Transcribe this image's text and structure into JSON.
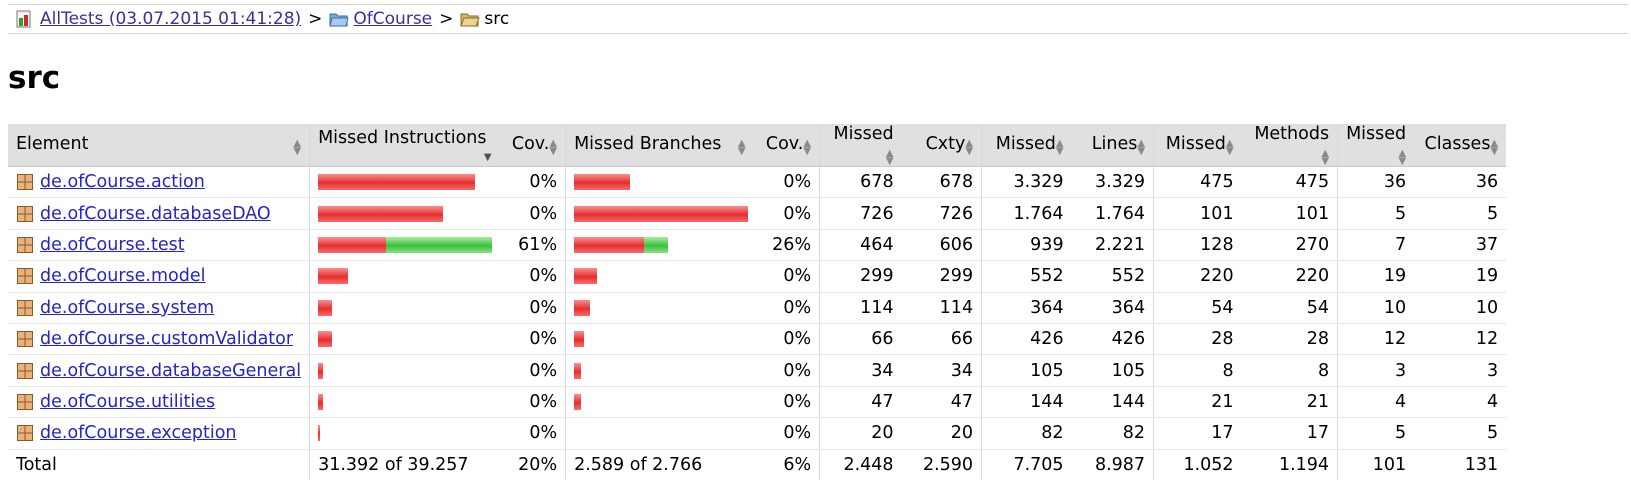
{
  "breadcrumb": {
    "root": "AllTests (03.07.2015 01:41:28)",
    "separator": ">",
    "folder": "OfCourse",
    "current": "src"
  },
  "title": "src",
  "columns": {
    "element": "Element",
    "missed_instructions": "Missed Instructions",
    "cov1": "Cov.",
    "missed_branches": "Missed Branches",
    "cov2": "Cov.",
    "missed_cxty": "Missed",
    "cxty": "Cxty",
    "missed_lines": "Missed",
    "lines": "Lines",
    "missed_methods": "Missed",
    "methods": "Methods",
    "missed_classes": "Missed",
    "classes": "Classes"
  },
  "rows": [
    {
      "name": "de.ofCourse.action",
      "instr_red": 0.9,
      "instr_green": 0.0,
      "cov1": "0%",
      "br_red": 0.32,
      "br_green": 0.0,
      "cov2": "0%",
      "missed_cxty": "678",
      "cxty": "678",
      "missed_lines": "3.329",
      "lines": "3.329",
      "missed_methods": "475",
      "methods": "475",
      "missed_classes": "36",
      "classes": "36"
    },
    {
      "name": "de.ofCourse.databaseDAO",
      "instr_red": 0.72,
      "instr_green": 0.0,
      "cov1": "0%",
      "br_red": 1.0,
      "br_green": 0.0,
      "cov2": "0%",
      "missed_cxty": "726",
      "cxty": "726",
      "missed_lines": "1.764",
      "lines": "1.764",
      "missed_methods": "101",
      "methods": "101",
      "missed_classes": "5",
      "classes": "5"
    },
    {
      "name": "de.ofCourse.test",
      "instr_red": 0.39,
      "instr_green": 0.61,
      "cov1": "61%",
      "br_red": 0.4,
      "br_green": 0.14,
      "cov2": "26%",
      "missed_cxty": "464",
      "cxty": "606",
      "missed_lines": "939",
      "lines": "2.221",
      "missed_methods": "128",
      "methods": "270",
      "missed_classes": "7",
      "classes": "37"
    },
    {
      "name": "de.ofCourse.model",
      "instr_red": 0.17,
      "instr_green": 0.0,
      "cov1": "0%",
      "br_red": 0.13,
      "br_green": 0.0,
      "cov2": "0%",
      "missed_cxty": "299",
      "cxty": "299",
      "missed_lines": "552",
      "lines": "552",
      "missed_methods": "220",
      "methods": "220",
      "missed_classes": "19",
      "classes": "19"
    },
    {
      "name": "de.ofCourse.system",
      "instr_red": 0.08,
      "instr_green": 0.0,
      "cov1": "0%",
      "br_red": 0.09,
      "br_green": 0.0,
      "cov2": "0%",
      "missed_cxty": "114",
      "cxty": "114",
      "missed_lines": "364",
      "lines": "364",
      "missed_methods": "54",
      "methods": "54",
      "missed_classes": "10",
      "classes": "10"
    },
    {
      "name": "de.ofCourse.customValidator",
      "instr_red": 0.08,
      "instr_green": 0.0,
      "cov1": "0%",
      "br_red": 0.06,
      "br_green": 0.0,
      "cov2": "0%",
      "missed_cxty": "66",
      "cxty": "66",
      "missed_lines": "426",
      "lines": "426",
      "missed_methods": "28",
      "methods": "28",
      "missed_classes": "12",
      "classes": "12"
    },
    {
      "name": "de.ofCourse.databaseGeneral",
      "instr_red": 0.03,
      "instr_green": 0.0,
      "cov1": "0%",
      "br_red": 0.04,
      "br_green": 0.0,
      "cov2": "0%",
      "missed_cxty": "34",
      "cxty": "34",
      "missed_lines": "105",
      "lines": "105",
      "missed_methods": "8",
      "methods": "8",
      "missed_classes": "3",
      "classes": "3"
    },
    {
      "name": "de.ofCourse.utilities",
      "instr_red": 0.03,
      "instr_green": 0.0,
      "cov1": "0%",
      "br_red": 0.04,
      "br_green": 0.0,
      "cov2": "0%",
      "missed_cxty": "47",
      "cxty": "47",
      "missed_lines": "144",
      "lines": "144",
      "missed_methods": "21",
      "methods": "21",
      "missed_classes": "4",
      "classes": "4"
    },
    {
      "name": "de.ofCourse.exception",
      "instr_red": 0.01,
      "instr_green": 0.0,
      "cov1": "0%",
      "br_red": 0.0,
      "br_green": 0.0,
      "cov2": "0%",
      "missed_cxty": "20",
      "cxty": "20",
      "missed_lines": "82",
      "lines": "82",
      "missed_methods": "17",
      "methods": "17",
      "missed_classes": "5",
      "classes": "5"
    }
  ],
  "total": {
    "label": "Total",
    "instr": "31.392 of 39.257",
    "cov1": "20%",
    "br": "2.589 of 2.766",
    "cov2": "6%",
    "missed_cxty": "2.448",
    "cxty": "2.590",
    "missed_lines": "7.705",
    "lines": "8.987",
    "missed_methods": "1.052",
    "methods": "1.194",
    "missed_classes": "101",
    "classes": "131"
  },
  "colors": {
    "missed": "#e23030",
    "covered": "#3cbf3c",
    "link": "#2424c8",
    "header_bg": "#e0e0e0"
  },
  "icons": {
    "report": "report-icon",
    "folder": "folder-icon",
    "open_folder": "open-folder-icon",
    "package": "package-icon"
  }
}
